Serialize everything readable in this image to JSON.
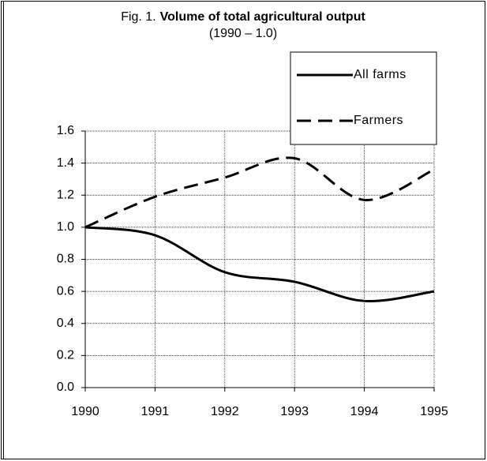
{
  "chart_data": {
    "type": "line",
    "title_label": "Fig. 1.",
    "title": "Volume of total agricultural output",
    "subtitle": "(1990 – 1.0)",
    "x": [
      1990,
      1991,
      1992,
      1993,
      1994,
      1995
    ],
    "xlim": [
      1990,
      1995
    ],
    "xticks": [
      1990,
      1991,
      1992,
      1993,
      1994,
      1995
    ],
    "ylim": [
      0,
      1.6
    ],
    "yticks": [
      {
        "value": 0,
        "label": "0.0"
      },
      0.2,
      0.4,
      0.6,
      0.8,
      {
        "value": 1,
        "label": "1.0"
      },
      1.2,
      1.4,
      1.6
    ],
    "grid": true,
    "legend": "top-right",
    "series": [
      {
        "name": "All farms",
        "color": "#000000",
        "dash": "solid",
        "values": [
          1.0,
          0.95,
          0.72,
          0.66,
          0.54,
          0.6
        ]
      },
      {
        "name": "Farmers",
        "color": "#000000",
        "dash": "dashed",
        "values": [
          1.0,
          1.19,
          1.31,
          1.43,
          1.17,
          1.36
        ]
      }
    ]
  }
}
